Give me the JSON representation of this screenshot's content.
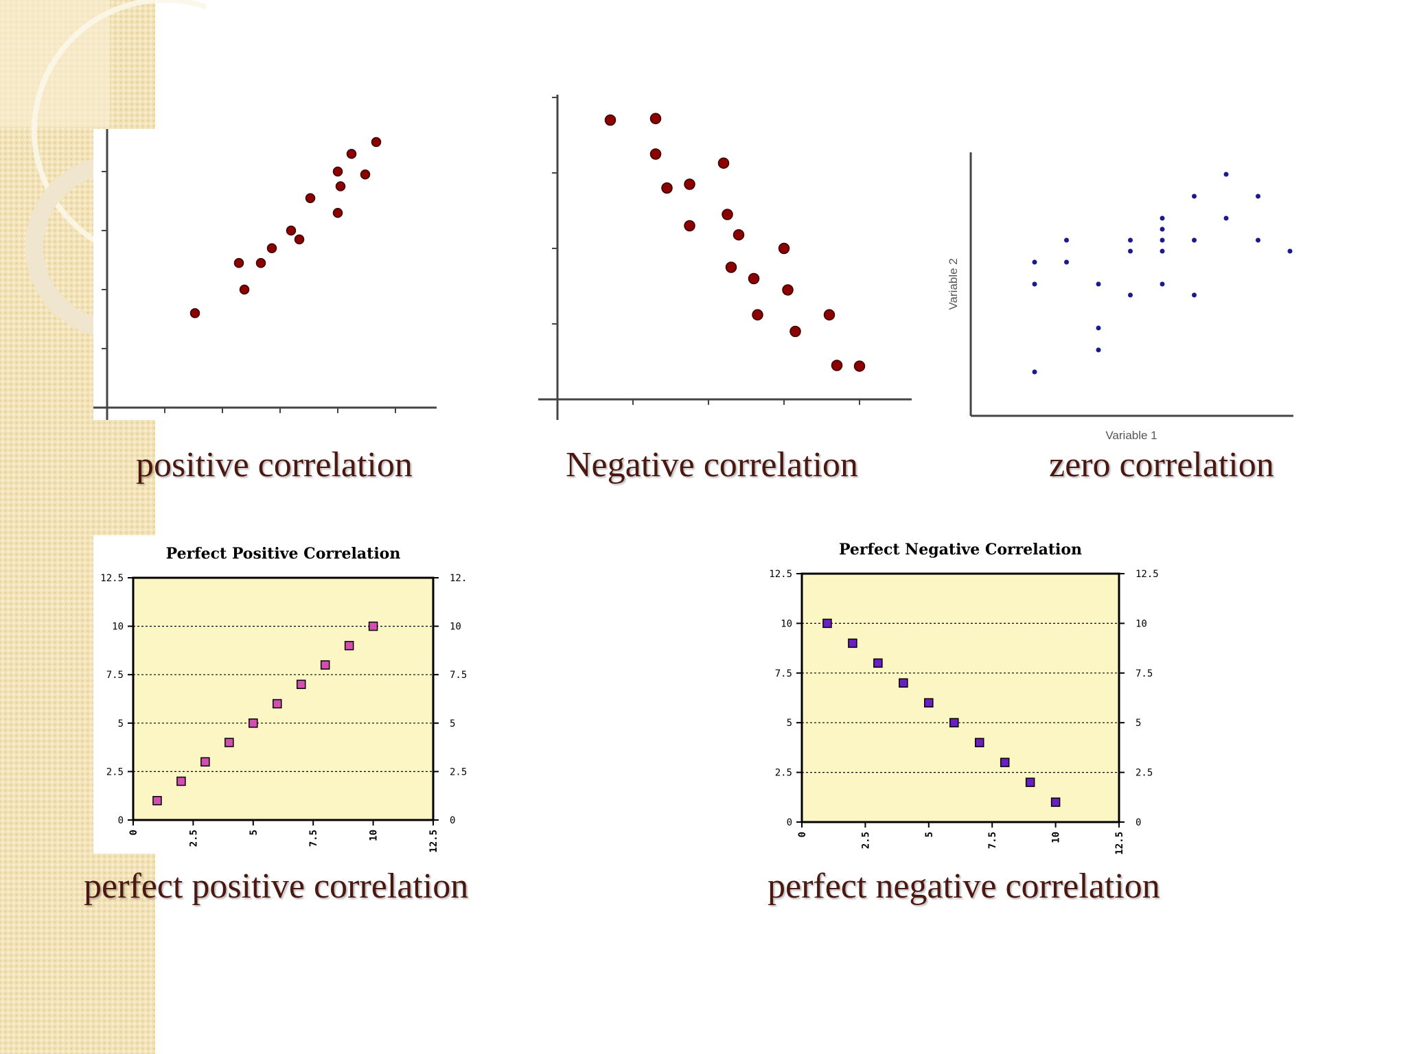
{
  "slide": {
    "colors": {
      "caption": "#4a1810",
      "band": "#f3e3b8",
      "scatter_dot": "#8b0000",
      "zero_dot": "#1a1a8c",
      "plot_bg": "#fbf6c4",
      "pos_marker": "#d24fb0",
      "neg_marker": "#6a1fc0"
    }
  },
  "captions": {
    "positive": "positive correlation",
    "negative": "Negative correlation",
    "zero": "zero correlation",
    "perfect_positive": "perfect positive correlation",
    "perfect_negative": "perfect negative correlation"
  },
  "chart_data": [
    {
      "id": "positive",
      "type": "scatter",
      "title": "",
      "xlim": [
        0,
        6
      ],
      "ylim": [
        0,
        5
      ],
      "x": [
        1.6,
        2.4,
        2.5,
        2.8,
        3.0,
        3.35,
        3.5,
        3.7,
        4.2,
        4.2,
        4.25,
        4.45,
        4.7,
        4.9
      ],
      "y": [
        1.6,
        2.45,
        2.0,
        2.45,
        2.7,
        3.0,
        2.85,
        3.55,
        3.3,
        4.0,
        3.75,
        4.3,
        3.95,
        4.5
      ]
    },
    {
      "id": "negative",
      "type": "scatter",
      "title": "",
      "xlim": [
        0,
        4
      ],
      "ylim": [
        0,
        4
      ],
      "x": [
        0.7,
        1.3,
        1.3,
        1.45,
        1.75,
        1.75,
        2.2,
        2.25,
        2.3,
        2.4,
        2.6,
        2.65,
        3.0,
        3.05,
        3.15,
        3.6,
        3.7,
        4.0
      ],
      "y": [
        3.7,
        3.72,
        3.25,
        2.8,
        2.85,
        2.3,
        3.13,
        2.45,
        1.75,
        2.18,
        1.6,
        1.12,
        2.0,
        1.45,
        0.9,
        1.12,
        0.45,
        0.44
      ]
    },
    {
      "id": "zero",
      "type": "scatter",
      "title": "",
      "xlabel": "Variable 1",
      "ylabel": "Variable 2",
      "x": [
        2,
        2,
        2,
        3,
        3,
        4,
        4,
        4,
        5,
        5,
        5,
        6,
        6,
        6,
        6,
        6,
        7,
        7,
        7,
        8,
        8,
        9,
        9,
        10
      ],
      "y": [
        7,
        6,
        2,
        8,
        7,
        6,
        4,
        3,
        8,
        7.5,
        5.5,
        9,
        8.5,
        8,
        6,
        7.5,
        10,
        8,
        5.5,
        11,
        9,
        10,
        8,
        7.5
      ]
    },
    {
      "id": "perfect_positive",
      "type": "scatter",
      "title": "Perfect Positive Correlation",
      "xlim": [
        0,
        12.5
      ],
      "ylim": [
        0,
        12.5
      ],
      "xticks": [
        "0",
        "2.5",
        "5",
        "7.5",
        "10",
        "12.5"
      ],
      "yticks": [
        "0",
        "2.5",
        "5",
        "7.5",
        "10",
        "12.5"
      ],
      "x": [
        1,
        2,
        3,
        4,
        5,
        6,
        7,
        8,
        9,
        10
      ],
      "y": [
        1,
        2,
        3,
        4,
        5,
        6,
        7,
        8,
        9,
        10
      ]
    },
    {
      "id": "perfect_negative",
      "type": "scatter",
      "title": "Perfect Negative Correlation",
      "xlim": [
        0,
        12.5
      ],
      "ylim": [
        0,
        12.5
      ],
      "xticks": [
        "0",
        "2.5",
        "5",
        "7.5",
        "10",
        "12.5"
      ],
      "yticks": [
        "0",
        "2.5",
        "5",
        "7.5",
        "10",
        "12.5"
      ],
      "x": [
        1,
        2,
        3,
        4,
        5,
        6,
        7,
        8,
        9,
        10
      ],
      "y": [
        10,
        9,
        8,
        7,
        6,
        5,
        4,
        3,
        2,
        1
      ]
    }
  ]
}
